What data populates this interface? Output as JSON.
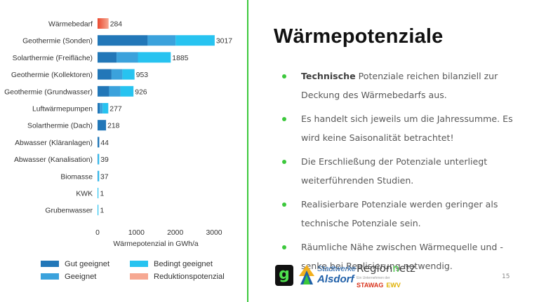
{
  "chart_data": {
    "type": "bar",
    "orientation": "horizontal",
    "stacked": true,
    "xlabel": "Wärmepotenzial in GWh/a",
    "xlim": [
      0,
      3000
    ],
    "xticks": [
      "0",
      "1000",
      "2000",
      "3000"
    ],
    "grid": false,
    "legend_placement": "bottom",
    "categories": [
      "Wärmebedarf",
      "Geothermie (Sonden)",
      "Solarthermie (Freifläche)",
      "Geothermie (Kollektoren)",
      "Geothermie (Grundwasser)",
      "Luftwärmepumpen",
      "Solarthermie (Dach)",
      "Abwasser (Kläranlagen)",
      "Abwasser (Kanalisation)",
      "Biomasse",
      "KWK",
      "Grubenwasser"
    ],
    "totals": [
      "284",
      "3017",
      "1885",
      "953",
      "926",
      "277",
      "218",
      "44",
      "39",
      "37",
      "1",
      "1"
    ],
    "series": [
      {
        "name": "Gut geeignet",
        "color": "#2277b8",
        "values": [
          0,
          1290,
          490,
          360,
          300,
          60,
          218,
          44,
          0,
          0,
          0,
          0
        ]
      },
      {
        "name": "Geeignet",
        "color": "#3ba2dc",
        "values": [
          0,
          720,
          550,
          280,
          290,
          70,
          0,
          0,
          20,
          20,
          0,
          0
        ]
      },
      {
        "name": "Bedingt geeignet",
        "color": "#27c3f0",
        "values": [
          0,
          1007,
          845,
          313,
          336,
          147,
          0,
          0,
          19,
          17,
          1,
          1
        ]
      },
      {
        "name": "Reduktionspotenzial",
        "color": "#f2705a",
        "values": [
          284,
          0,
          0,
          0,
          0,
          0,
          0,
          0,
          0,
          0,
          0,
          0
        ]
      }
    ],
    "bar_color_shades": {
      "reduktion_light": "#f6a892",
      "reduktion_dark": "#ea4a30"
    }
  },
  "slide": {
    "title": "Wärmepotenziale",
    "bullets": [
      {
        "bold": "Technische",
        "text": " Potenziale reichen bilanziell zur Deckung des Wärmebedarfs aus."
      },
      {
        "bold": "",
        "text": "Es handelt sich jeweils um die Jahressumme. Es wird keine Saisonalität betrachtet!"
      },
      {
        "bold": "",
        "text": "Die Erschließung der Potenziale unterliegt weiterführenden Studien."
      },
      {
        "bold": "",
        "text": "Realisierbare Potenziale werden geringer als technische Potenziale sein."
      },
      {
        "bold": "",
        "text": "Räumliche Nähe zwischen Wärmequelle und -senke bei Realisierung notwendig."
      }
    ],
    "page_number": "15",
    "accent_color": "#3cc83c"
  },
  "logos": {
    "g_letter": "g",
    "stadtwerke_top": "Stadtwerke",
    "stadtwerke_bottom": "Alsdorf",
    "regionetz_prefix": "Region",
    "regionetz_suffix": "etz",
    "regionetz_n": "n",
    "regionetz_tiny": "Ein Unternehmen der",
    "stawag": "STAWAG",
    "ewv": "EWV"
  }
}
